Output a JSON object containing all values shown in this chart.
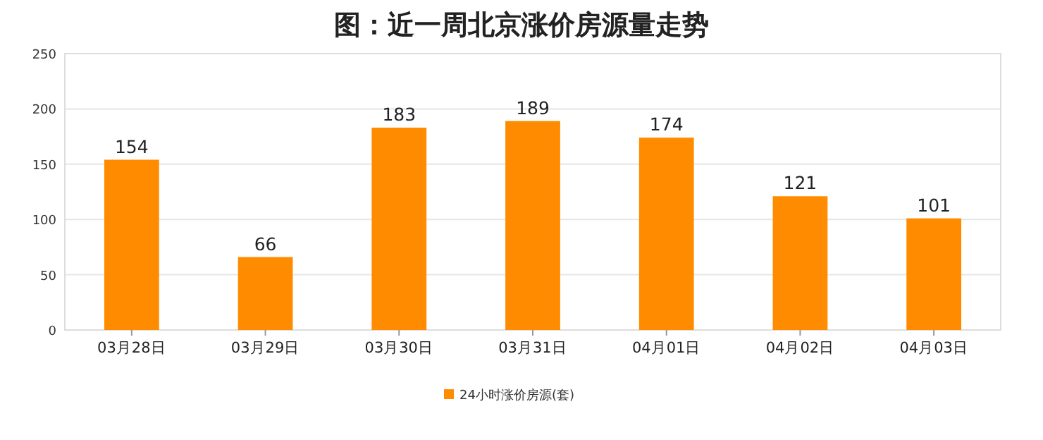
{
  "chart_data": {
    "type": "bar",
    "title": "图：近一周北京涨价房源量走势",
    "categories": [
      "03月28日",
      "03月29日",
      "03月30日",
      "03月31日",
      "04月01日",
      "04月02日",
      "04月03日"
    ],
    "series": [
      {
        "name": "24小时涨价房源(套)",
        "color": "#ff8c00",
        "values": [
          154,
          66,
          183,
          189,
          174,
          121,
          101
        ]
      }
    ],
    "ylim": [
      0,
      250
    ],
    "yticks": [
      0,
      50,
      100,
      150,
      200,
      250
    ],
    "grid": "y",
    "data_labels": true,
    "legend": "bottom"
  }
}
